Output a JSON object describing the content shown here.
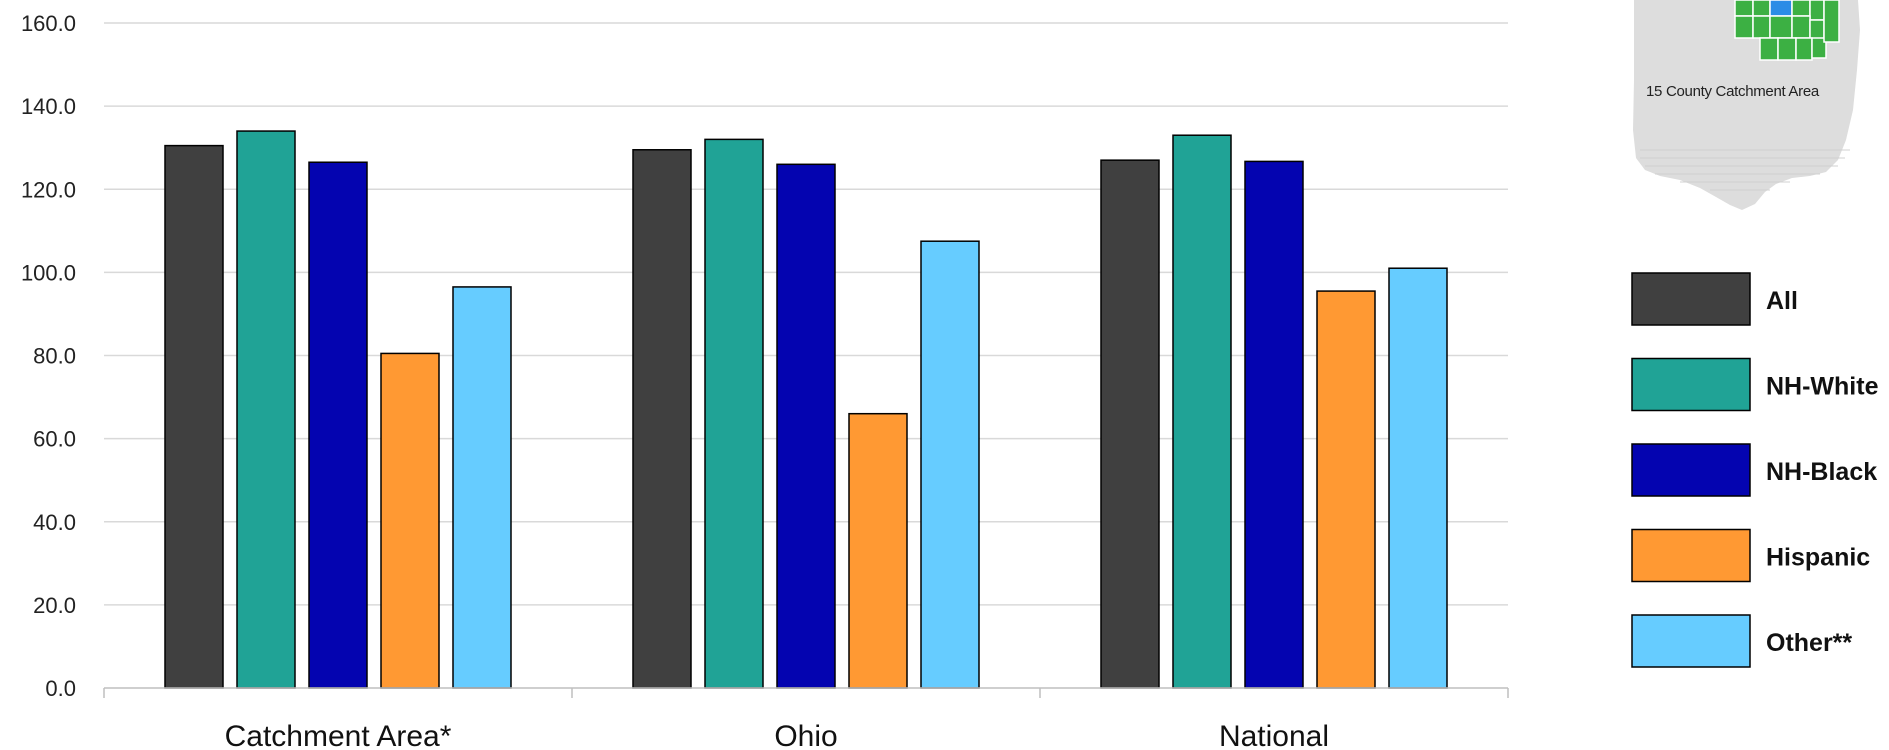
{
  "chart_data": {
    "type": "bar",
    "categories": [
      "Catchment Area*",
      "Ohio",
      "National"
    ],
    "series": [
      {
        "name": "All",
        "color": "#404040",
        "values": [
          130.5,
          129.5,
          127.0
        ]
      },
      {
        "name": "NH-White",
        "color": "#20A396",
        "values": [
          134.0,
          132.0,
          133.0
        ]
      },
      {
        "name": "NH-Black",
        "color": "#0404B0",
        "values": [
          126.5,
          126.0,
          126.7
        ]
      },
      {
        "name": "Hispanic",
        "color": "#FF9933",
        "values": [
          80.5,
          66.0,
          95.5
        ]
      },
      {
        "name": "Other**",
        "color": "#66CCFF",
        "values": [
          96.5,
          107.5,
          101.0
        ]
      }
    ],
    "ylim": [
      0,
      160
    ],
    "yticks": [
      "0.0",
      "20.0",
      "40.0",
      "60.0",
      "80.0",
      "100.0",
      "120.0",
      "140.0",
      "160.0"
    ],
    "title": "",
    "xlabel": "",
    "ylabel": "",
    "grid": true,
    "legend_position": "right"
  },
  "map_inset": {
    "caption": "15 County Catchment Area",
    "state_color": "#DDDDDD",
    "catchment_color": "#3CB043",
    "highlight_color": "#2B8CE6"
  }
}
